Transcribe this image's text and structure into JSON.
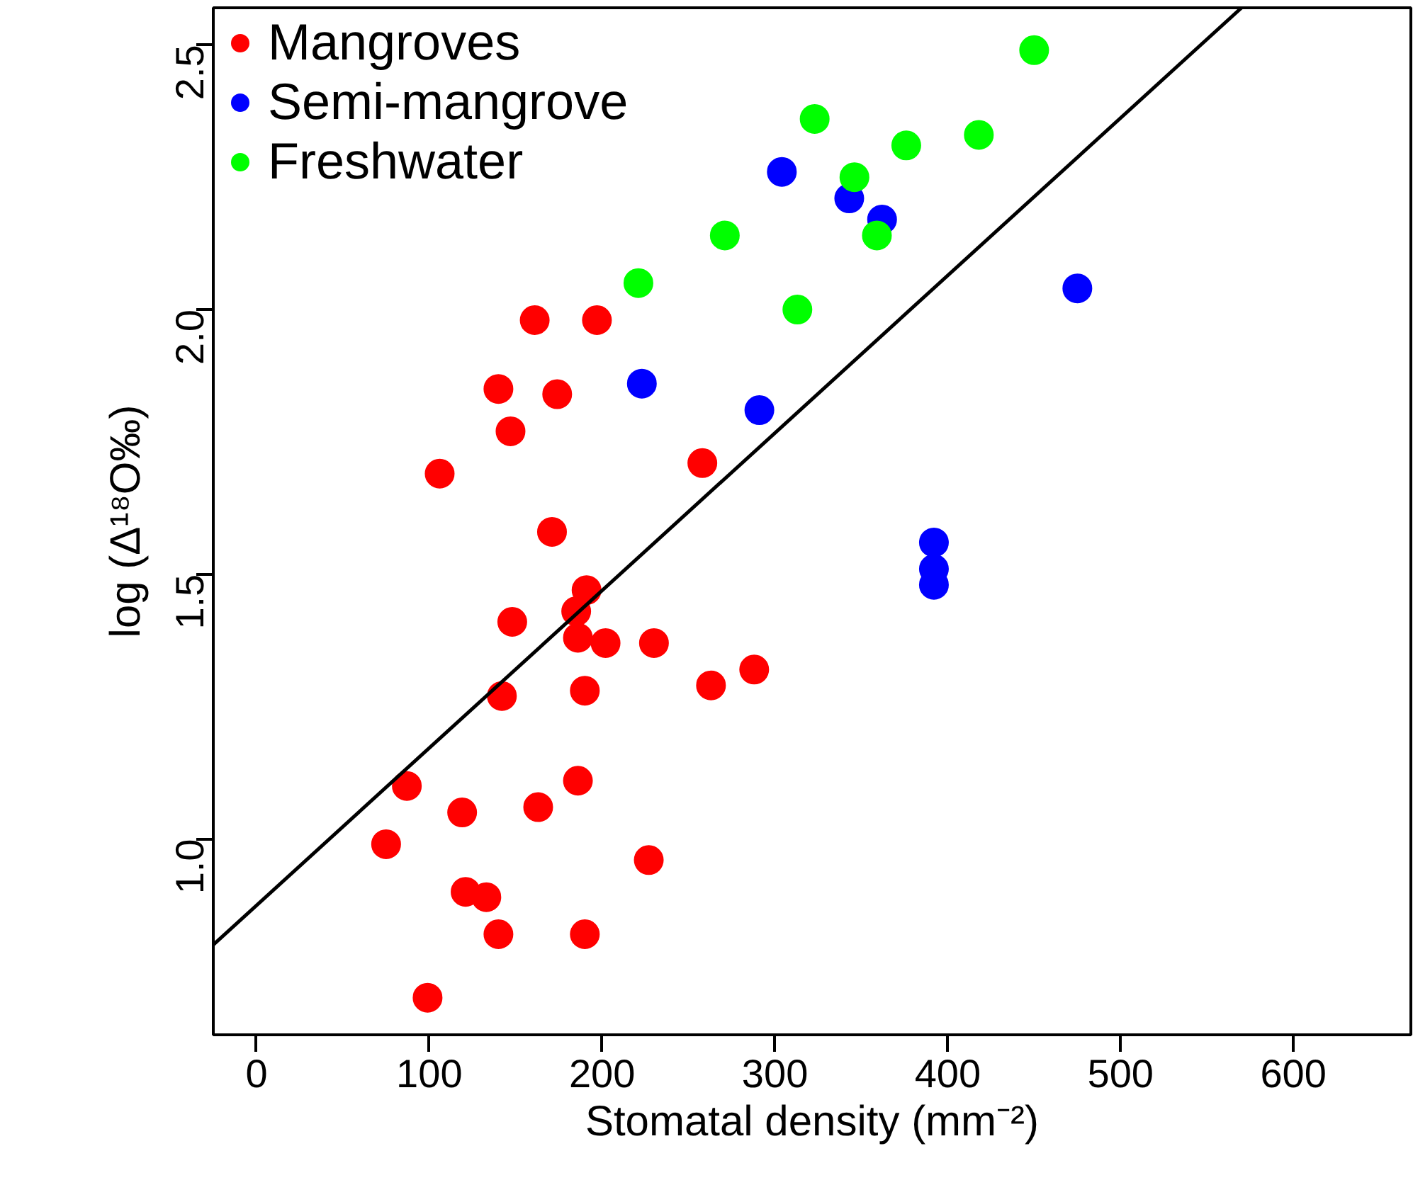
{
  "chart_data": {
    "type": "scatter",
    "xlabel": "Stomatal density (mm⁻²)",
    "ylabel": "log (Δ¹⁸O‰)",
    "xlim": [
      -25,
      668
    ],
    "ylim": [
      0.63,
      2.57
    ],
    "xticks": [
      0,
      100,
      200,
      300,
      400,
      500,
      600
    ],
    "yticks": [
      {
        "value": 1,
        "label": "1.0"
      },
      1.5,
      {
        "value": 2,
        "label": "2.0"
      },
      2.5
    ],
    "grid": false,
    "legend": "top left",
    "marker": "circle",
    "series": [
      {
        "name": "Mangroves",
        "color": "#ff0000",
        "x": [
          161,
          197,
          140,
          174,
          147,
          106,
          258,
          171,
          191,
          185,
          148,
          186,
          202,
          230,
          288,
          190,
          263,
          142,
          87,
          186,
          119,
          163,
          75,
          227,
          121,
          133,
          140,
          190,
          99
        ],
        "values": [
          1.98,
          1.98,
          1.85,
          1.84,
          1.77,
          1.69,
          1.71,
          1.58,
          1.47,
          1.43,
          1.41,
          1.38,
          1.37,
          1.37,
          1.32,
          1.28,
          1.29,
          1.27,
          1.1,
          1.11,
          1.05,
          1.06,
          0.99,
          0.96,
          0.9,
          0.89,
          0.82,
          0.82,
          0.7
        ]
      },
      {
        "name": "Semi-mangrove",
        "color": "#0000ff",
        "x": [
          304,
          343,
          362,
          475,
          223,
          291,
          392,
          392,
          392
        ],
        "values": [
          2.26,
          2.21,
          2.17,
          2.04,
          1.86,
          1.81,
          1.56,
          1.51,
          1.48
        ]
      },
      {
        "name": "Freshwater",
        "color": "#00ff00",
        "x": [
          450,
          323,
          376,
          418,
          346,
          359,
          271,
          313,
          221
        ],
        "values": [
          2.49,
          2.36,
          2.31,
          2.33,
          2.25,
          2.14,
          2.14,
          2.0,
          2.05
        ]
      },
      {
        "type": "line",
        "marker": "none",
        "color": "#000000",
        "x": [
          -25,
          570
        ],
        "values": [
          0.8,
          2.57
        ]
      }
    ]
  }
}
